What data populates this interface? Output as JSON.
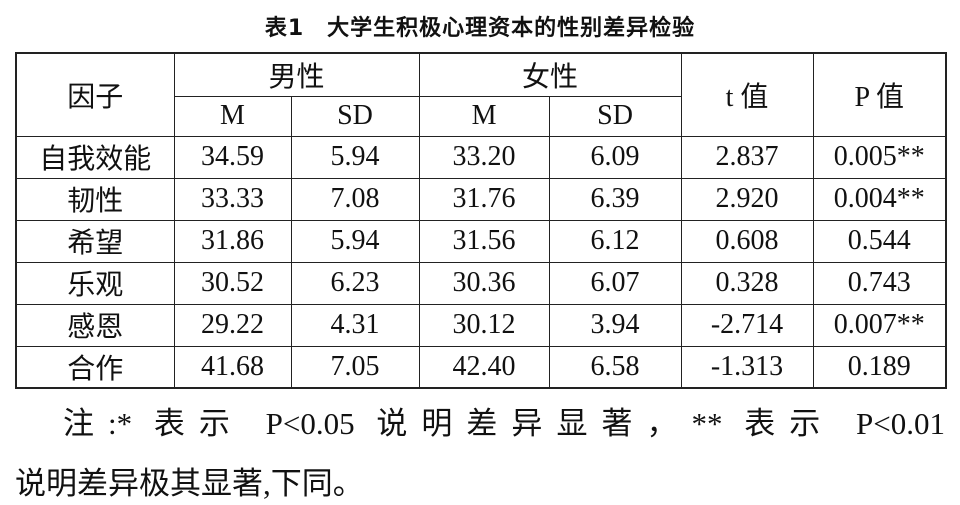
{
  "title": "表1　大学生积极心理资本的性别差异检验",
  "header": {
    "factor": "因子",
    "male": "男性",
    "female": "女性",
    "t": "t 值",
    "p": "P 值",
    "sub": [
      "M",
      "SD",
      "M",
      "SD"
    ]
  },
  "rows": [
    [
      "自我效能",
      "34.59",
      "5.94",
      "33.20",
      "6.09",
      "2.837",
      "0.005**"
    ],
    [
      "韧性",
      "33.33",
      "7.08",
      "31.76",
      "6.39",
      "2.920",
      "0.004**"
    ],
    [
      "希望",
      "31.86",
      "5.94",
      "31.56",
      "6.12",
      "0.608",
      "0.544"
    ],
    [
      "乐观",
      "30.52",
      "6.23",
      "30.36",
      "6.07",
      "0.328",
      "0.743"
    ],
    [
      "感恩",
      "29.22",
      "4.31",
      "30.12",
      "3.94",
      "-2.714",
      "0.007**"
    ],
    [
      "合作",
      "41.68",
      "7.05",
      "42.40",
      "6.58",
      "-1.313",
      "0.189"
    ]
  ],
  "note": [
    "注:* 表示 P<0.05 说明差异显著，** 表示 P<0.01",
    "说明差异极其显著,下同。"
  ]
}
